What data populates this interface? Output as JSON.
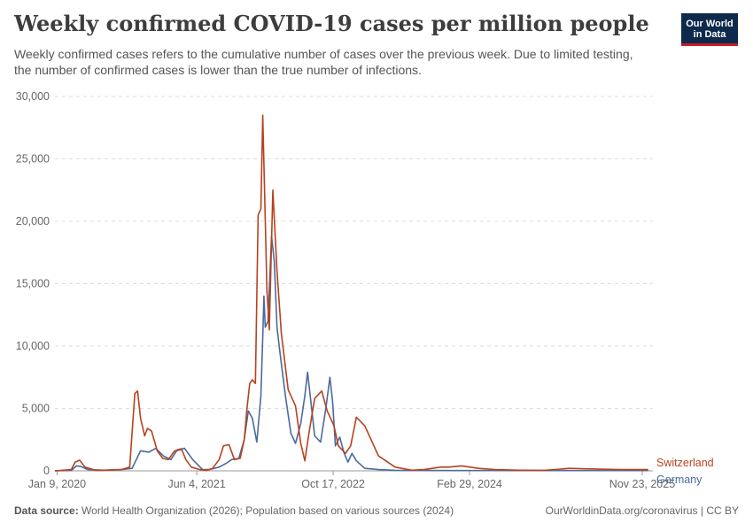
{
  "title": "Weekly confirmed COVID-19 cases per million people",
  "subtitle": "Weekly confirmed cases refers to the cumulative number of cases over the previous week. Due to limited testing, the number of confirmed cases is lower than the true number of infections.",
  "logo": {
    "line1": "Our World",
    "line2": "in Data"
  },
  "footer": {
    "source_label": "Data source:",
    "source_text": "World Health Organization (2026); Population based on various sources (2024)",
    "url": "OurWorldinData.org/coronavirus",
    "license": "CC BY"
  },
  "colors": {
    "Switzerland": "#b8421d",
    "Germany": "#4c6a9c"
  },
  "chart_data": {
    "type": "line",
    "xlabel": "",
    "ylabel": "",
    "ylim": [
      0,
      30000
    ],
    "yticks": [
      0,
      5000,
      10000,
      15000,
      20000,
      25000,
      30000
    ],
    "ytick_labels": [
      "0",
      "5,000",
      "10,000",
      "15,000",
      "20,000",
      "25,000",
      "30,000"
    ],
    "xlim": [
      "2020-01-01",
      "2026-01-01"
    ],
    "xticks": [
      "2020-01-09",
      "2021-06-04",
      "2022-10-17",
      "2024-02-29",
      "2025-11-23"
    ],
    "xtick_labels": [
      "Jan 9, 2020",
      "Jun 4, 2021",
      "Oct 17, 2022",
      "Feb 29, 2024",
      "Nov 23, 2025"
    ],
    "grid": true,
    "legend": "end-of-line labels, right",
    "series": [
      {
        "name": "Switzerland",
        "x": [
          "2020-01-01",
          "2020-03-01",
          "2020-03-15",
          "2020-04-01",
          "2020-04-20",
          "2020-06-01",
          "2020-09-01",
          "2020-10-01",
          "2020-10-20",
          "2020-10-30",
          "2020-11-10",
          "2020-11-25",
          "2020-12-05",
          "2020-12-20",
          "2021-01-10",
          "2021-01-30",
          "2021-02-20",
          "2021-03-15",
          "2021-04-10",
          "2021-04-25",
          "2021-05-15",
          "2021-06-15",
          "2021-07-10",
          "2021-08-01",
          "2021-08-25",
          "2021-09-10",
          "2021-09-30",
          "2021-10-20",
          "2021-11-10",
          "2021-11-25",
          "2021-12-05",
          "2021-12-15",
          "2021-12-25",
          "2022-01-05",
          "2022-01-15",
          "2022-01-25",
          "2022-02-01",
          "2022-02-08",
          "2022-02-16",
          "2022-02-25",
          "2022-03-10",
          "2022-03-25",
          "2022-04-10",
          "2022-05-05",
          "2022-06-01",
          "2022-06-20",
          "2022-07-05",
          "2022-07-20",
          "2022-08-10",
          "2022-09-05",
          "2022-09-25",
          "2022-10-10",
          "2022-10-20",
          "2022-11-05",
          "2022-12-01",
          "2022-12-20",
          "2023-01-10",
          "2023-02-10",
          "2023-04-01",
          "2023-06-01",
          "2023-08-01",
          "2023-09-15",
          "2023-10-15",
          "2023-11-15",
          "2023-12-15",
          "2024-02-01",
          "2024-04-01",
          "2024-06-01",
          "2024-09-01",
          "2024-12-01",
          "2025-03-01",
          "2025-06-01",
          "2025-09-01",
          "2025-12-15"
        ],
        "y": [
          0,
          100,
          700,
          850,
          300,
          30,
          100,
          300,
          6200,
          6400,
          4200,
          2800,
          3400,
          3200,
          1600,
          1000,
          900,
          1600,
          1700,
          900,
          300,
          100,
          40,
          200,
          900,
          2000,
          2100,
          900,
          1000,
          2500,
          5000,
          7000,
          7300,
          7000,
          20500,
          21000,
          28500,
          22000,
          14500,
          11300,
          22500,
          16000,
          11000,
          6500,
          5200,
          2200,
          800,
          3000,
          5800,
          6400,
          4800,
          4100,
          3600,
          2000,
          1400,
          2000,
          4300,
          3600,
          1200,
          300,
          50,
          100,
          200,
          300,
          300,
          400,
          200,
          100,
          50,
          40,
          200,
          150,
          100,
          100
        ]
      },
      {
        "name": "Germany",
        "x": [
          "2020-01-01",
          "2020-03-01",
          "2020-03-20",
          "2020-04-05",
          "2020-05-01",
          "2020-07-01",
          "2020-09-01",
          "2020-10-10",
          "2020-11-10",
          "2020-12-10",
          "2021-01-05",
          "2021-02-01",
          "2021-03-01",
          "2021-03-25",
          "2021-04-20",
          "2021-05-20",
          "2021-06-25",
          "2021-07-20",
          "2021-08-25",
          "2021-09-20",
          "2021-10-10",
          "2021-11-05",
          "2021-11-25",
          "2021-12-10",
          "2021-12-25",
          "2022-01-10",
          "2022-01-25",
          "2022-02-01",
          "2022-02-05",
          "2022-02-10",
          "2022-02-20",
          "2022-03-05",
          "2022-03-15",
          "2022-03-25",
          "2022-04-05",
          "2022-04-25",
          "2022-05-15",
          "2022-06-01",
          "2022-06-20",
          "2022-07-05",
          "2022-07-15",
          "2022-07-25",
          "2022-08-10",
          "2022-09-01",
          "2022-09-20",
          "2022-10-05",
          "2022-10-15",
          "2022-10-25",
          "2022-11-10",
          "2022-11-25",
          "2022-12-10",
          "2022-12-25",
          "2023-01-10",
          "2023-02-10",
          "2023-04-01",
          "2023-06-01",
          "2024-01-01",
          "2025-01-01",
          "2025-12-15"
        ],
        "y": [
          0,
          30,
          400,
          350,
          100,
          50,
          100,
          200,
          1600,
          1500,
          1800,
          1200,
          900,
          1700,
          1800,
          900,
          100,
          100,
          300,
          600,
          900,
          1000,
          2500,
          4800,
          4200,
          2300,
          6000,
          10700,
          14000,
          11500,
          12000,
          18800,
          16800,
          11500,
          9500,
          6000,
          3000,
          2200,
          3800,
          6000,
          7900,
          6000,
          2800,
          2300,
          5000,
          7500,
          5500,
          2000,
          2700,
          1500,
          700,
          1400,
          800,
          200,
          100,
          40,
          20,
          20,
          20
        ]
      }
    ]
  }
}
